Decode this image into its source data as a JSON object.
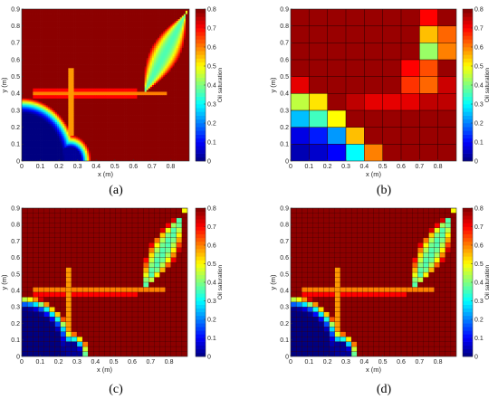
{
  "chart_data": [
    {
      "panel": "(a)",
      "type": "heatmap",
      "xlabel": "x (m)",
      "ylabel": "y (m)",
      "xlim": [
        0,
        0.9
      ],
      "ylim": [
        0,
        0.9
      ],
      "x_ticks": [
        "0",
        "0.1",
        "0.2",
        "0.3",
        "0.4",
        "0.5",
        "0.6",
        "0.7",
        "0.8"
      ],
      "y_ticks": [
        "0",
        "0.1",
        "0.2",
        "0.3",
        "0.4",
        "0.5",
        "0.6",
        "0.7",
        "0.8",
        "0.9"
      ],
      "colorbar_label": "Oil saturation",
      "colorbar_ticks": [
        "0",
        "0.1",
        "0.2",
        "0.3",
        "0.4",
        "0.5",
        "0.6",
        "0.7",
        "0.8"
      ],
      "clim": [
        0,
        0.8
      ],
      "colormap": "jet",
      "grid_cells": 90,
      "cell_edges": false
    },
    {
      "panel": "(b)",
      "type": "heatmap",
      "xlabel": "x (m)",
      "ylabel": "y (m)",
      "xlim": [
        0,
        0.9
      ],
      "ylim": [
        0,
        0.9
      ],
      "x_ticks": [
        "0",
        "0.1",
        "0.2",
        "0.3",
        "0.4",
        "0.5",
        "0.6",
        "0.7",
        "0.8"
      ],
      "y_ticks": [
        "0",
        "0.1",
        "0.2",
        "0.3",
        "0.4",
        "0.5",
        "0.6",
        "0.7",
        "0.8",
        "0.9"
      ],
      "colorbar_label": "Oil saturation",
      "colorbar_ticks": [
        "0",
        "0.1",
        "0.2",
        "0.3",
        "0.4",
        "0.5",
        "0.6",
        "0.7",
        "0.8"
      ],
      "clim": [
        0,
        0.8
      ],
      "colormap": "jet",
      "grid_cells": 9,
      "cell_edges": true,
      "values_top_row_first": [
        [
          0.78,
          0.78,
          0.78,
          0.78,
          0.78,
          0.78,
          0.78,
          0.7,
          0.78
        ],
        [
          0.78,
          0.78,
          0.78,
          0.78,
          0.78,
          0.78,
          0.78,
          0.55,
          0.62
        ],
        [
          0.78,
          0.78,
          0.78,
          0.78,
          0.78,
          0.78,
          0.78,
          0.42,
          0.6
        ],
        [
          0.78,
          0.78,
          0.78,
          0.78,
          0.78,
          0.78,
          0.7,
          0.64,
          0.78
        ],
        [
          0.72,
          0.78,
          0.78,
          0.78,
          0.78,
          0.78,
          0.66,
          0.62,
          0.74
        ],
        [
          0.45,
          0.52,
          0.78,
          0.75,
          0.72,
          0.72,
          0.72,
          0.75,
          0.75
        ],
        [
          0.25,
          0.35,
          0.5,
          0.78,
          0.78,
          0.78,
          0.78,
          0.78,
          0.78
        ],
        [
          0.08,
          0.12,
          0.22,
          0.55,
          0.78,
          0.78,
          0.78,
          0.78,
          0.78
        ],
        [
          0.04,
          0.06,
          0.1,
          0.3,
          0.6,
          0.78,
          0.78,
          0.78,
          0.78
        ]
      ]
    },
    {
      "panel": "(c)",
      "type": "heatmap",
      "xlabel": "x (m)",
      "ylabel": "y (m)",
      "xlim": [
        0,
        0.9
      ],
      "ylim": [
        0,
        0.9
      ],
      "x_ticks": [
        "0",
        "0.1",
        "0.2",
        "0.3",
        "0.4",
        "0.5",
        "0.6",
        "0.7",
        "0.8"
      ],
      "y_ticks": [
        "0",
        "0.1",
        "0.2",
        "0.3",
        "0.4",
        "0.5",
        "0.6",
        "0.7",
        "0.8",
        "0.9"
      ],
      "colorbar_label": "Oil saturation",
      "colorbar_ticks": [
        "0",
        "0.1",
        "0.2",
        "0.3",
        "0.4",
        "0.5",
        "0.6",
        "0.7",
        "0.8"
      ],
      "clim": [
        0,
        0.8
      ],
      "colormap": "jet",
      "grid_cells": 30,
      "cell_edges": true
    },
    {
      "panel": "(d)",
      "type": "heatmap",
      "xlabel": "x (m)",
      "ylabel": "y (m)",
      "xlim": [
        0,
        0.9
      ],
      "ylim": [
        0,
        0.9
      ],
      "x_ticks": [
        "0",
        "0.1",
        "0.2",
        "0.3",
        "0.4",
        "0.5",
        "0.6",
        "0.7",
        "0.8"
      ],
      "y_ticks": [
        "0",
        "0.1",
        "0.2",
        "0.3",
        "0.4",
        "0.5",
        "0.6",
        "0.7",
        "0.8",
        "0.9"
      ],
      "colorbar_label": "Oil saturation",
      "colorbar_ticks": [
        "0",
        "0.1",
        "0.2",
        "0.3",
        "0.4",
        "0.5",
        "0.6",
        "0.7",
        "0.8"
      ],
      "clim": [
        0,
        0.8
      ],
      "colormap": "jet",
      "grid_cells": 30,
      "cell_edges": true
    }
  ]
}
